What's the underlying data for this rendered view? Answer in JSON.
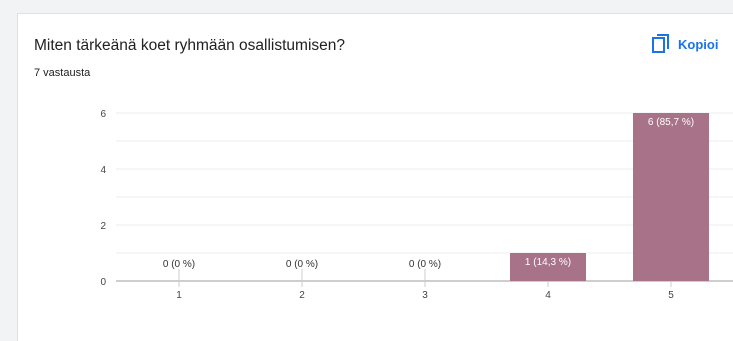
{
  "question": {
    "title": "Miten tärkeänä koet ryhmään osallistumisen?",
    "responses": "7 vastausta"
  },
  "toolbar": {
    "copy_label": "Kopioi",
    "copy_icon": "copy-icon"
  },
  "colors": {
    "bar": "#a87289",
    "accent": "#1a73e8",
    "grid": "#ececec",
    "axis": "#9e9e9e"
  },
  "chart_data": {
    "type": "bar",
    "categories": [
      "1",
      "2",
      "3",
      "4",
      "5"
    ],
    "values": [
      0,
      0,
      0,
      1,
      6
    ],
    "data_labels": [
      "0 (0 %)",
      "0 (0 %)",
      "0 (0 %)",
      "1 (14,3 %)",
      "6 (85,7 %)"
    ],
    "yticks": [
      0,
      2,
      4,
      6
    ],
    "ylim": [
      0,
      6
    ],
    "title": "",
    "xlabel": "",
    "ylabel": ""
  }
}
